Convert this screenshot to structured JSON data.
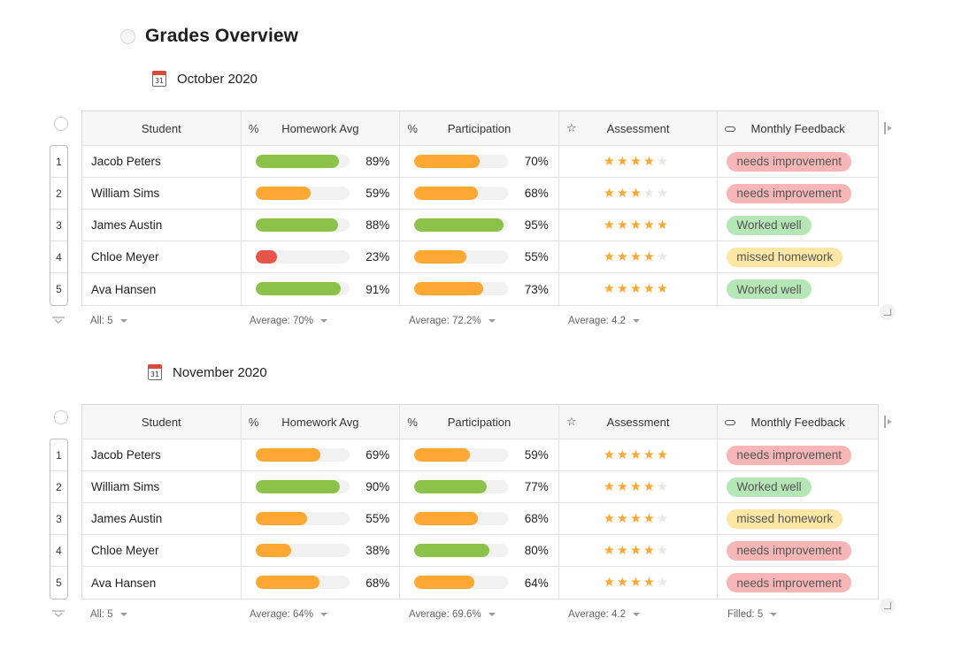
{
  "page": {
    "title": "Grades Overview"
  },
  "colors": {
    "green": "#8bc34a",
    "orange": "#ffa733",
    "red": "#e8534a",
    "star_on": "#ffa733",
    "star_off": "#e6e6e6",
    "tag_pink_bg": "#f6b6b6",
    "tag_green_bg": "#b5e6b5",
    "tag_yellow_bg": "#fde6a6"
  },
  "columns": {
    "student": "Student",
    "homework": "Homework Avg",
    "participation": "Participation",
    "assessment": "Assessment",
    "feedback": "Monthly Feedback",
    "percent_icon": "%",
    "star_icon": "☆"
  },
  "sections": [
    {
      "title": "October 2020",
      "calendar_day": "31",
      "rows": [
        {
          "num": "1",
          "student": "Jacob Peters",
          "homework": 89,
          "homework_label": "89%",
          "homework_color": "green",
          "participation": 70,
          "participation_label": "70%",
          "participation_color": "orange",
          "rating": 4,
          "feedback": "needs improvement",
          "feedback_color": "pink"
        },
        {
          "num": "2",
          "student": "William Sims",
          "homework": 59,
          "homework_label": "59%",
          "homework_color": "orange",
          "participation": 68,
          "participation_label": "68%",
          "participation_color": "orange",
          "rating": 3,
          "feedback": "needs improvement",
          "feedback_color": "pink"
        },
        {
          "num": "3",
          "student": "James Austin",
          "homework": 88,
          "homework_label": "88%",
          "homework_color": "green",
          "participation": 95,
          "participation_label": "95%",
          "participation_color": "green",
          "rating": 5,
          "feedback": "Worked well",
          "feedback_color": "green"
        },
        {
          "num": "4",
          "student": "Chloe Meyer",
          "homework": 23,
          "homework_label": "23%",
          "homework_color": "red",
          "participation": 55,
          "participation_label": "55%",
          "participation_color": "orange",
          "rating": 4,
          "feedback": "missed homework",
          "feedback_color": "yellow"
        },
        {
          "num": "5",
          "student": "Ava Hansen",
          "homework": 91,
          "homework_label": "91%",
          "homework_color": "green",
          "participation": 73,
          "participation_label": "73%",
          "participation_color": "orange",
          "rating": 5,
          "feedback": "Worked well",
          "feedback_color": "green"
        }
      ],
      "footer": [
        "All: 5",
        "Average: 70%",
        "Average: 72.2%",
        "Average: 4.2",
        ""
      ]
    },
    {
      "title": "November 2020",
      "calendar_day": "31",
      "rows": [
        {
          "num": "1",
          "student": "Jacob Peters",
          "homework": 69,
          "homework_label": "69%",
          "homework_color": "orange",
          "participation": 59,
          "participation_label": "59%",
          "participation_color": "orange",
          "rating": 5,
          "feedback": "needs improvement",
          "feedback_color": "pink"
        },
        {
          "num": "2",
          "student": "William Sims",
          "homework": 90,
          "homework_label": "90%",
          "homework_color": "green",
          "participation": 77,
          "participation_label": "77%",
          "participation_color": "green",
          "rating": 4,
          "feedback": "Worked well",
          "feedback_color": "green"
        },
        {
          "num": "3",
          "student": "James Austin",
          "homework": 55,
          "homework_label": "55%",
          "homework_color": "orange",
          "participation": 68,
          "participation_label": "68%",
          "participation_color": "orange",
          "rating": 4,
          "feedback": "missed homework",
          "feedback_color": "yellow"
        },
        {
          "num": "4",
          "student": "Chloe Meyer",
          "homework": 38,
          "homework_label": "38%",
          "homework_color": "orange",
          "participation": 80,
          "participation_label": "80%",
          "participation_color": "green",
          "rating": 4,
          "feedback": "needs improvement",
          "feedback_color": "pink"
        },
        {
          "num": "5",
          "student": "Ava Hansen",
          "homework": 68,
          "homework_label": "68%",
          "homework_color": "orange",
          "participation": 64,
          "participation_label": "64%",
          "participation_color": "orange",
          "rating": 4,
          "feedback": "needs improvement",
          "feedback_color": "pink"
        }
      ],
      "footer": [
        "All: 5",
        "Average: 64%",
        "Average: 69.6%",
        "Average: 4.2",
        "Filled: 5"
      ]
    }
  ]
}
